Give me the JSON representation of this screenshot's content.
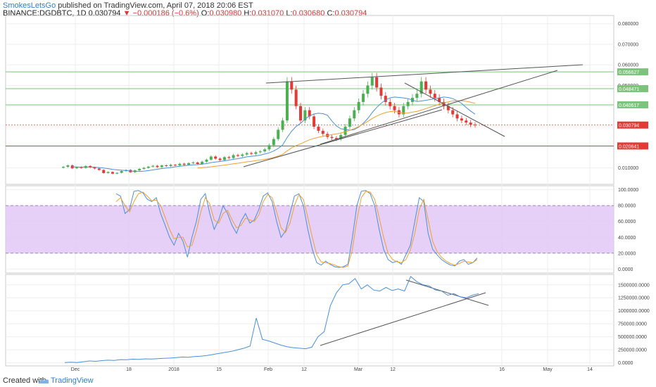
{
  "header": {
    "author": "SmokesLetsGo",
    "published": " published on TradingView.com, April 07, 2018 20:06 EST",
    "symbol": "BINANCE:DGDBTC, 1D",
    "last": "0.030794",
    "change": "−0.000186 (−0.6%)",
    "o_label": "O:",
    "o": "0.030980",
    "h_label": "H:",
    "h": "0.031070",
    "l_label": "L:",
    "l": "0.030680",
    "c_label": "C:",
    "c": "0.030794"
  },
  "footer": {
    "created": "Created with",
    "brand": "TradingView"
  },
  "colors": {
    "up": "#4caf50",
    "down": "#e53935",
    "ma_blue": "#4a90d9",
    "ma_orange": "#f0a030",
    "stoch_band": "#e2c8f7",
    "trend": "#555555",
    "green_level": "#7cc47c",
    "red_level": "#e53935"
  },
  "chart_data": [
    {
      "type": "candlestick",
      "name": "DGDBTC",
      "x_labels": [
        "Dec",
        "18",
        "2018",
        "15",
        "Feb",
        "12",
        "Mar",
        "12",
        "16",
        "May",
        "14"
      ],
      "y_ticks": [
        "0.080000",
        "0.070000",
        "0.060000",
        "0.050000",
        "0.040000",
        "0.030000",
        "0.020000",
        "0.010000"
      ],
      "ylim": [
        0.002,
        0.084
      ],
      "levels": [
        {
          "label": "0.056627",
          "value": 0.056627,
          "color": "#7cc47c"
        },
        {
          "label": "0.048471",
          "value": 0.048471,
          "color": "#7cc47c"
        },
        {
          "label": "0.040617",
          "value": 0.040617,
          "color": "#7cc47c"
        },
        {
          "label": "0.030794",
          "value": 0.030794,
          "color": "#e53935"
        },
        {
          "label": "0.020641",
          "value": 0.020641,
          "color": "#e53935"
        }
      ],
      "close_series": [
        0.0105,
        0.0112,
        0.0098,
        0.0103,
        0.01,
        0.0109,
        0.0102,
        0.0097,
        0.009,
        0.0075,
        0.008,
        0.0072,
        0.0076,
        0.0085,
        0.009,
        0.0079,
        0.0088,
        0.0095,
        0.01,
        0.0106,
        0.011,
        0.0104,
        0.0112,
        0.0109,
        0.0115,
        0.0112,
        0.012,
        0.0115,
        0.0123,
        0.0126,
        0.0119,
        0.013,
        0.014,
        0.0155,
        0.0145,
        0.0138,
        0.0152,
        0.0148,
        0.0162,
        0.0158,
        0.0165,
        0.0172,
        0.0168,
        0.0176,
        0.018,
        0.019,
        0.021,
        0.024,
        0.0285,
        0.033,
        0.052,
        0.048,
        0.04,
        0.033,
        0.038,
        0.035,
        0.03,
        0.028,
        0.0265,
        0.025,
        0.0245,
        0.024,
        0.026,
        0.03,
        0.034,
        0.038,
        0.042,
        0.046,
        0.05,
        0.054,
        0.049,
        0.045,
        0.042,
        0.04,
        0.038,
        0.036,
        0.04,
        0.042,
        0.044,
        0.046,
        0.052,
        0.048,
        0.046,
        0.044,
        0.042,
        0.04,
        0.038,
        0.036,
        0.034,
        0.033,
        0.032,
        0.031,
        0.0308
      ],
      "overlays": [
        "moving-average",
        "moving-average",
        "trendline",
        "trendline",
        "trendline",
        "trendline"
      ]
    },
    {
      "type": "line",
      "name": "stochastic-rsi",
      "y_ticks": [
        "100.0000",
        "80.0000",
        "60.0000",
        "40.0000",
        "20.0000",
        "0.0000"
      ],
      "ylim": [
        -5,
        105
      ],
      "band": [
        20,
        80
      ],
      "k": [
        95,
        92,
        70,
        75,
        98,
        99,
        96,
        88,
        85,
        90,
        70,
        55,
        40,
        30,
        45,
        35,
        15,
        40,
        60,
        88,
        95,
        70,
        50,
        62,
        80,
        70,
        55,
        45,
        60,
        70,
        58,
        62,
        75,
        92,
        96,
        85,
        60,
        40,
        48,
        70,
        92,
        95,
        80,
        50,
        25,
        8,
        5,
        10,
        6,
        3,
        2,
        3,
        6,
        40,
        80,
        98,
        99,
        95,
        80,
        50,
        25,
        12,
        8,
        10,
        6,
        18,
        30,
        60,
        90,
        85,
        45,
        25,
        18,
        12,
        8,
        5,
        4,
        10,
        12,
        6,
        8,
        14
      ],
      "d": [
        85,
        90,
        80,
        72,
        85,
        95,
        97,
        92,
        86,
        87,
        80,
        65,
        50,
        38,
        40,
        40,
        28,
        30,
        48,
        72,
        90,
        82,
        62,
        58,
        70,
        74,
        62,
        52,
        55,
        64,
        62,
        60,
        68,
        85,
        94,
        90,
        72,
        52,
        46,
        58,
        80,
        94,
        88,
        65,
        40,
        18,
        9,
        8,
        7,
        5,
        3,
        2,
        4,
        25,
        62,
        90,
        98,
        97,
        88,
        65,
        40,
        20,
        12,
        9,
        8,
        12,
        24,
        45,
        75,
        88,
        62,
        35,
        22,
        15,
        10,
        7,
        5,
        7,
        10,
        9,
        8,
        12
      ]
    },
    {
      "type": "line",
      "name": "obv",
      "y_ticks": [
        "1500000.0000",
        "1250000.0000",
        "1000000.0000",
        "750000.0000",
        "500000.0000",
        "250000.0000",
        "0.0000"
      ],
      "ylim": [
        -60000,
        1700000
      ],
      "values": [
        5000,
        12000,
        3000,
        20000,
        35000,
        28000,
        42000,
        50000,
        45000,
        60000,
        58000,
        70000,
        65000,
        75000,
        72000,
        80000,
        85000,
        90000,
        100000,
        110000,
        105000,
        120000,
        125000,
        140000,
        160000,
        180000,
        200000,
        220000,
        250000,
        280000,
        320000,
        860000,
        450000,
        420000,
        380000,
        340000,
        310000,
        290000,
        280000,
        270000,
        300000,
        500000,
        600000,
        1100000,
        1350000,
        1500000,
        1520000,
        1620000,
        1420000,
        1500000,
        1400000,
        1380000,
        1450000,
        1390000,
        1420000,
        1380000,
        1660000,
        1560000,
        1500000,
        1480000,
        1400000,
        1380000,
        1300000,
        1330000,
        1270000,
        1250000,
        1300000,
        1330000
      ]
    }
  ]
}
